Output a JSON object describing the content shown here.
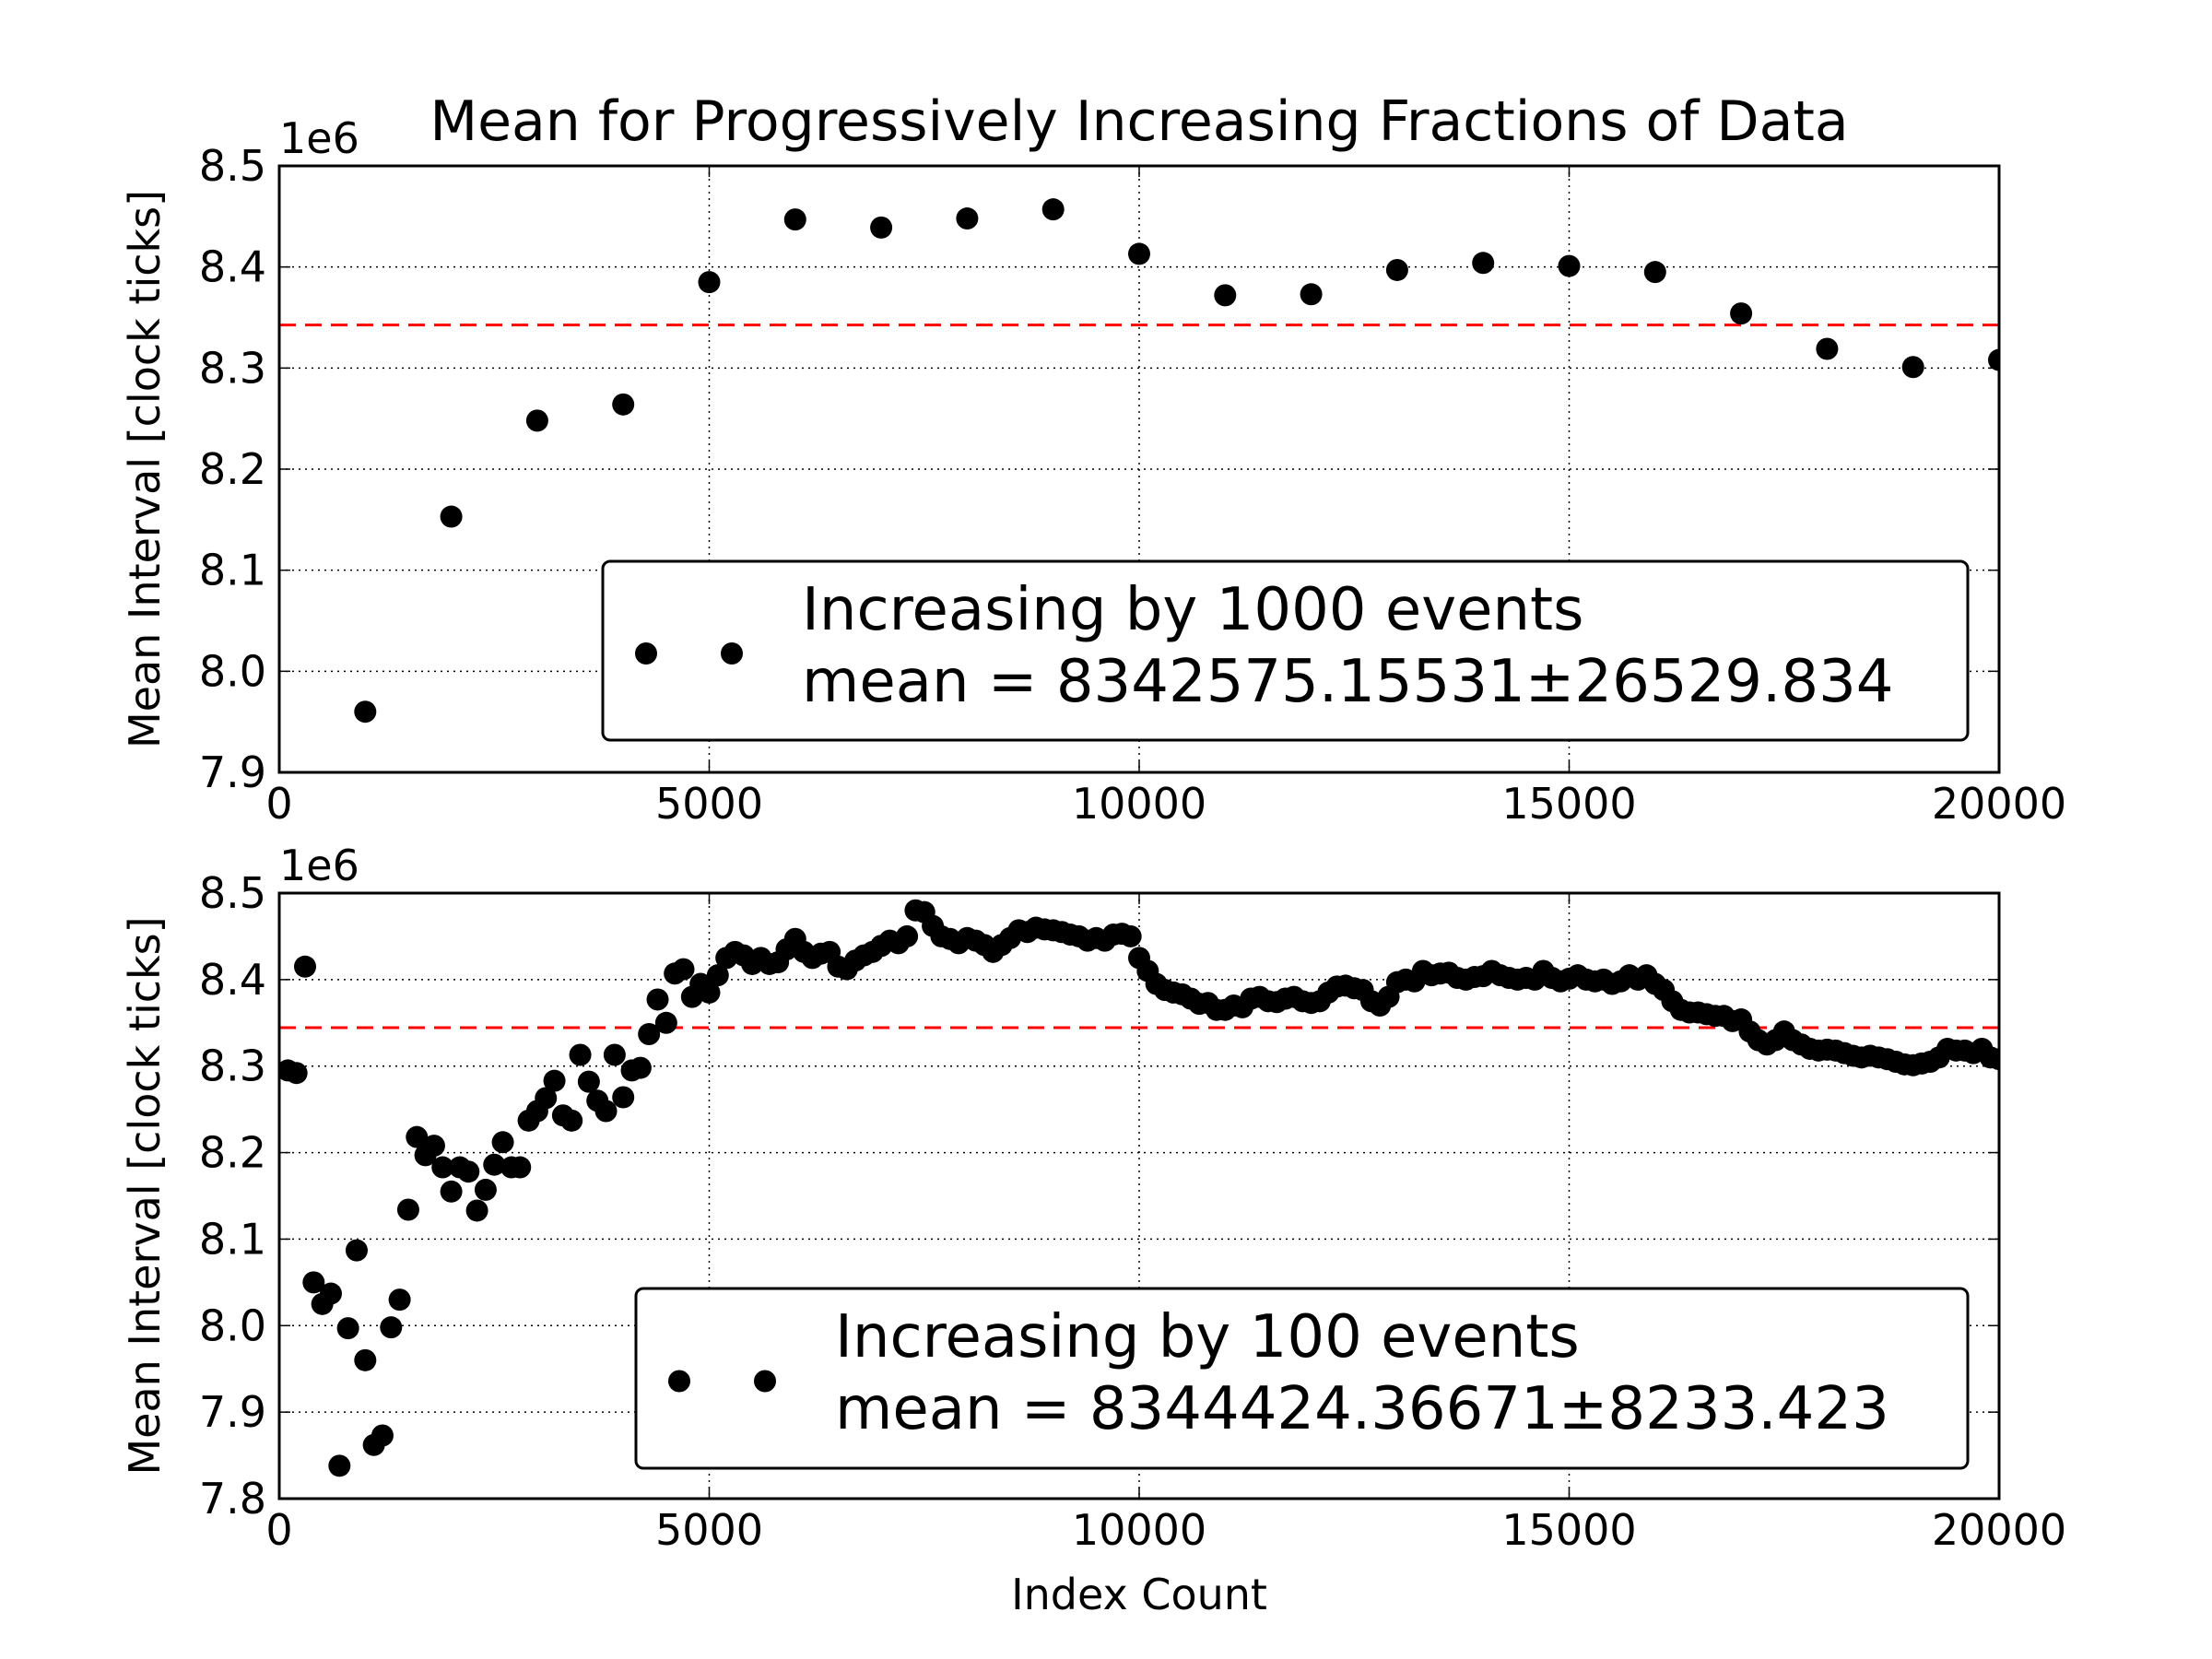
{
  "chart_data": [
    {
      "type": "scatter",
      "title": "Mean for Progressively Increasing Fractions of Data",
      "ylabel": "Mean Interval [clock ticks]",
      "y_offset_label": "1e6",
      "xlim": [
        0,
        20000
      ],
      "xticks": [
        0,
        5000,
        10000,
        15000,
        20000
      ],
      "ylim": [
        7.9,
        8.5
      ],
      "yticks": [
        7.9,
        {
          "value": 8,
          "label": "8.0"
        },
        8.1,
        8.2,
        8.3,
        8.4,
        8.5
      ],
      "grid": true,
      "legend": "lower right",
      "hline": {
        "value": 8.34257515531,
        "color": "#ff0000"
      },
      "series": [
        {
          "name": "Increasing by 1000 events",
          "legend_note": "mean = 8342575.15531±26529.834",
          "color": "#000000",
          "x": [
            1000,
            2000,
            3000,
            4000,
            5000,
            6000,
            7000,
            8000,
            9000,
            10000,
            11000,
            12000,
            13000,
            14000,
            15000,
            16000,
            17000,
            18000,
            19000,
            20000
          ],
          "values": [
            7.96,
            8.153,
            8.248,
            8.264,
            8.385,
            8.447,
            8.439,
            8.448,
            8.457,
            8.413,
            8.372,
            8.373,
            8.397,
            8.404,
            8.401,
            8.395,
            8.354,
            8.319,
            8.301,
            8.308
          ]
        }
      ]
    },
    {
      "type": "scatter",
      "ylabel": "Mean Interval [clock ticks]",
      "xlabel": "Index Count",
      "y_offset_label": "1e6",
      "xlim": [
        0,
        20000
      ],
      "xticks": [
        0,
        5000,
        10000,
        15000,
        20000
      ],
      "ylim": [
        7.8,
        8.5
      ],
      "yticks": [
        7.8,
        7.9,
        {
          "value": 8,
          "label": "8.0"
        },
        8.1,
        8.2,
        8.3,
        8.4,
        8.5
      ],
      "grid": true,
      "legend": "lower right",
      "hline": {
        "value": 8.34442436671,
        "color": "#ff0000"
      },
      "series": [
        {
          "name": "Increasing by 100 events",
          "legend_note": "mean = 8344424.36671±8233.423",
          "color": "#000000",
          "x": [
            100,
            200,
            300,
            400,
            500,
            600,
            700,
            800,
            900,
            1000,
            1100,
            1200,
            1300,
            1400,
            1500,
            1600,
            1700,
            1800,
            1900,
            2000,
            2100,
            2200,
            2300,
            2400,
            2500,
            2600,
            2700,
            2800,
            2900,
            3000,
            3100,
            3200,
            3300,
            3400,
            3500,
            3600,
            3700,
            3800,
            3900,
            4000,
            4100,
            4200,
            4300,
            4400,
            4500,
            4600,
            4700,
            4800,
            4900,
            5000,
            5100,
            5200,
            5300,
            5400,
            5500,
            5600,
            5700,
            5800,
            5900,
            6000,
            6100,
            6200,
            6300,
            6400,
            6500,
            6600,
            6700,
            6800,
            6900,
            7000,
            7100,
            7200,
            7300,
            7400,
            7500,
            7600,
            7700,
            7800,
            7900,
            8000,
            8100,
            8200,
            8300,
            8400,
            8500,
            8600,
            8700,
            8800,
            8900,
            9000,
            9100,
            9200,
            9300,
            9400,
            9500,
            9600,
            9700,
            9800,
            9900,
            10000,
            10100,
            10200,
            10300,
            10400,
            10500,
            10600,
            10700,
            10800,
            10900,
            11000,
            11100,
            11200,
            11300,
            11400,
            11500,
            11600,
            11700,
            11800,
            11900,
            12000,
            12100,
            12200,
            12300,
            12400,
            12500,
            12600,
            12700,
            12800,
            12900,
            13000,
            13100,
            13200,
            13300,
            13400,
            13500,
            13600,
            13700,
            13800,
            13900,
            14000,
            14100,
            14200,
            14300,
            14400,
            14500,
            14600,
            14700,
            14800,
            14900,
            15000,
            15100,
            15200,
            15300,
            15400,
            15500,
            15600,
            15700,
            15800,
            15900,
            16000,
            16100,
            16200,
            16300,
            16400,
            16500,
            16600,
            16700,
            16800,
            16900,
            17000,
            17100,
            17200,
            17300,
            17400,
            17500,
            17600,
            17700,
            17800,
            17900,
            18000,
            18100,
            18200,
            18300,
            18400,
            18500,
            18600,
            18700,
            18800,
            18900,
            19000,
            19100,
            19200,
            19300,
            19400,
            19500,
            19600,
            19700,
            19800,
            19900,
            20000
          ],
          "values": [
            8.295,
            8.292,
            8.415,
            8.05,
            8.025,
            8.037,
            7.838,
            7.997,
            8.087,
            7.96,
            7.862,
            7.873,
            7.998,
            8.03,
            8.134,
            8.218,
            8.197,
            8.208,
            8.183,
            8.155,
            8.183,
            8.178,
            8.133,
            8.157,
            8.186,
            8.212,
            8.183,
            8.183,
            8.237,
            8.248,
            8.263,
            8.283,
            8.243,
            8.237,
            8.313,
            8.282,
            8.26,
            8.248,
            8.313,
            8.264,
            8.295,
            8.298,
            8.337,
            8.377,
            8.35,
            8.407,
            8.412,
            8.38,
            8.395,
            8.385,
            8.405,
            8.425,
            8.432,
            8.428,
            8.418,
            8.425,
            8.418,
            8.42,
            8.435,
            8.447,
            8.432,
            8.425,
            8.43,
            8.432,
            8.415,
            8.412,
            8.422,
            8.428,
            8.432,
            8.439,
            8.445,
            8.442,
            8.45,
            8.48,
            8.478,
            8.462,
            8.45,
            8.447,
            8.442,
            8.448,
            8.445,
            8.44,
            8.432,
            8.44,
            8.448,
            8.457,
            8.455,
            8.46,
            8.458,
            8.457,
            8.455,
            8.452,
            8.45,
            8.445,
            8.448,
            8.445,
            8.452,
            8.453,
            8.45,
            8.425,
            8.41,
            8.395,
            8.388,
            8.385,
            8.383,
            8.378,
            8.372,
            8.373,
            8.365,
            8.365,
            8.37,
            8.368,
            8.378,
            8.38,
            8.375,
            8.374,
            8.378,
            8.38,
            8.375,
            8.373,
            8.375,
            8.385,
            8.392,
            8.393,
            8.39,
            8.388,
            8.375,
            8.37,
            8.38,
            8.397,
            8.4,
            8.398,
            8.41,
            8.405,
            8.407,
            8.408,
            8.402,
            8.4,
            8.403,
            8.404,
            8.41,
            8.405,
            8.402,
            8.4,
            8.402,
            8.4,
            8.41,
            8.402,
            8.398,
            8.401,
            8.405,
            8.4,
            8.398,
            8.4,
            8.395,
            8.398,
            8.405,
            8.4,
            8.405,
            8.395,
            8.388,
            8.375,
            8.365,
            8.362,
            8.362,
            8.36,
            8.358,
            8.358,
            8.352,
            8.354,
            8.34,
            8.33,
            8.325,
            8.33,
            8.34,
            8.33,
            8.325,
            8.32,
            8.318,
            8.319,
            8.318,
            8.315,
            8.312,
            8.31,
            8.312,
            8.31,
            8.308,
            8.305,
            8.302,
            8.301,
            8.303,
            8.305,
            8.31,
            8.32,
            8.318,
            8.318,
            8.315,
            8.32,
            8.31,
            8.308
          ]
        }
      ]
    }
  ]
}
